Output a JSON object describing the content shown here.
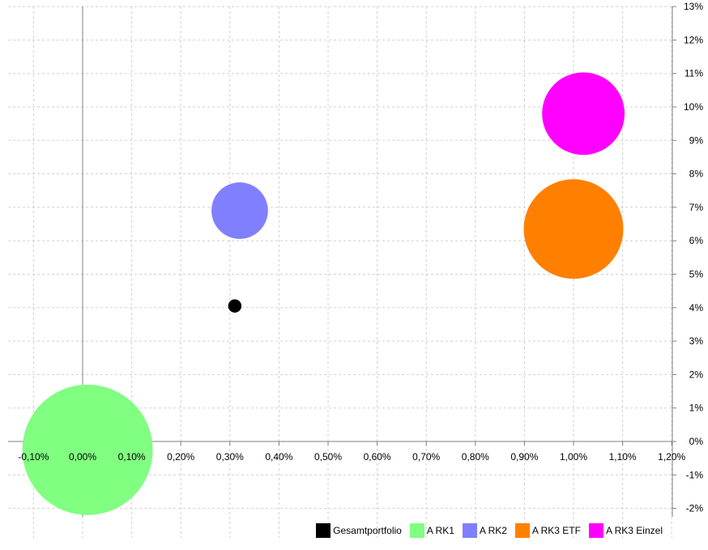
{
  "chart_data": {
    "type": "bubble",
    "title": "",
    "xlabel": "",
    "ylabel": "",
    "xlim": [
      -0.15,
      1.2
    ],
    "ylim": [
      -2.2,
      13
    ],
    "x_ticks": [
      -0.1,
      0.0,
      0.1,
      0.2,
      0.3,
      0.4,
      0.5,
      0.6,
      0.7,
      0.8,
      0.9,
      1.0,
      1.1,
      1.2
    ],
    "x_tick_labels": [
      "-0,10%",
      "0,00%",
      "0,10%",
      "0,20%",
      "0,30%",
      "0,40%",
      "0,50%",
      "0,60%",
      "0,70%",
      "0,80%",
      "0,90%",
      "1,00%",
      "1,10%",
      "1,20%"
    ],
    "y_ticks": [
      -2,
      -1,
      0,
      1,
      2,
      3,
      4,
      5,
      6,
      7,
      8,
      9,
      10,
      11,
      12,
      13
    ],
    "y_tick_labels": [
      "-2%",
      "-1%",
      "0%",
      "1%",
      "2%",
      "3%",
      "4%",
      "5%",
      "6%",
      "7%",
      "8%",
      "9%",
      "10%",
      "11%",
      "12%",
      "13%"
    ],
    "y_axis_position": "right",
    "grid": true,
    "legend_position": "bottom-right",
    "series": [
      {
        "name": "Gesamtportfolio",
        "x": 0.31,
        "y": 4.05,
        "size": 0.25,
        "color": "#000000"
      },
      {
        "name": "A RK1",
        "x": 0.01,
        "y": -0.25,
        "size": 24.0,
        "color": "#80ff80"
      },
      {
        "name": "A RK2",
        "x": 0.32,
        "y": 6.9,
        "size": 4.5,
        "color": "#8080ff"
      },
      {
        "name": "A RK3 ETF",
        "x": 1.0,
        "y": 6.35,
        "size": 14.0,
        "color": "#ff8000"
      },
      {
        "name": "A RK3 Einzel",
        "x": 1.02,
        "y": 9.8,
        "size": 9.6,
        "color": "#ff00ff"
      }
    ]
  }
}
